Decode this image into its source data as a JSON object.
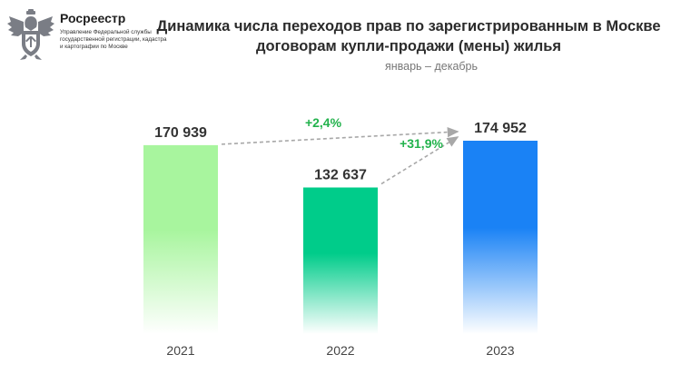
{
  "brand": {
    "name": "Росреестр",
    "subtitle": "Управление Федеральной службы государственной регистрации, кадастра и картографии по Москве",
    "colors": {
      "emblem": "#7a7d85"
    }
  },
  "chart_data": {
    "type": "bar",
    "title": "Динамика числа переходов прав по зарегистрированным в Москве договорам купли-продажи (мены) жилья",
    "subtitle": "январь – декабрь",
    "categories": [
      "2021",
      "2022",
      "2023"
    ],
    "values": [
      170939,
      132637,
      174952
    ],
    "value_labels": [
      "170 939",
      "132 637",
      "174 952"
    ],
    "colors": [
      "#a8f59e",
      "#00cc8a",
      "#1a82f5"
    ],
    "ylim": [
      0,
      200000
    ],
    "grid": false,
    "legend": "none",
    "annotations": [
      {
        "text": "+2,4%",
        "from": "2021",
        "to": "2023",
        "color": "#22b24c"
      },
      {
        "text": "+31,9%",
        "from": "2022",
        "to": "2023",
        "color": "#22b24c"
      }
    ]
  }
}
